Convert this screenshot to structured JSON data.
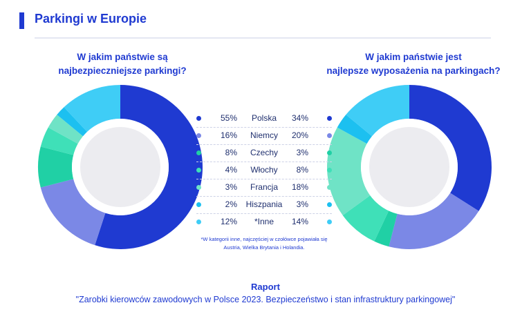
{
  "header": {
    "title": "Parkingi w Europie"
  },
  "colors": {
    "accent": "#1f3ad1",
    "Polska": "#1f3ad1",
    "Niemcy": "#7b88e6",
    "Czechy": "#20d0a5",
    "Włochy": "#3fe0b8",
    "Francja": "#6fe3c6",
    "Hiszpania": "#1cc0f0",
    "Inne": "#3fcdf6"
  },
  "chart_data": [
    {
      "type": "pie",
      "title_lines": [
        "W jakim państwie są",
        "najbezpieczniejsze parkingi?"
      ],
      "categories": [
        "Polska",
        "Niemcy",
        "Czechy",
        "Włochy",
        "Francja",
        "Hiszpania",
        "Inne"
      ],
      "values": [
        55,
        16,
        8,
        4,
        3,
        2,
        12
      ],
      "labels": [
        "55%",
        "16%",
        "8%",
        "4%",
        "3%",
        "2%",
        "12%"
      ]
    },
    {
      "type": "pie",
      "title_lines": [
        "W jakim państwie jest",
        "najlepsze wyposażenia na parkingach?"
      ],
      "categories": [
        "Polska",
        "Niemcy",
        "Czechy",
        "Włochy",
        "Francja",
        "Hiszpania",
        "Inne"
      ],
      "values": [
        34,
        20,
        3,
        8,
        18,
        3,
        14
      ],
      "labels": [
        "34%",
        "20%",
        "3%",
        "8%",
        "18%",
        "3%",
        "14%"
      ]
    }
  ],
  "table": {
    "rows": [
      {
        "country": "Polska",
        "left": "55%",
        "right": "34%"
      },
      {
        "country": "Niemcy",
        "left": "16%",
        "right": "20%"
      },
      {
        "country": "Czechy",
        "left": "8%",
        "right": "3%"
      },
      {
        "country": "Włochy",
        "left": "4%",
        "right": "8%"
      },
      {
        "country": "Francja",
        "left": "3%",
        "right": "18%"
      },
      {
        "country": "Hiszpania",
        "left": "2%",
        "right": "3%"
      },
      {
        "country": "*Inne",
        "left": "12%",
        "right": "14%"
      }
    ]
  },
  "footnote": {
    "line1": "*W kategorii inne, najczęściej w czołówce pojawiała się",
    "line2": "Austria, Wielka Brytania i Holandia."
  },
  "report": {
    "title": "Raport",
    "subtitle": "\"Zarobki kierowców zawodowych w Polsce 2023. Bezpieczeństwo i stan infrastruktury parkingowej\""
  }
}
